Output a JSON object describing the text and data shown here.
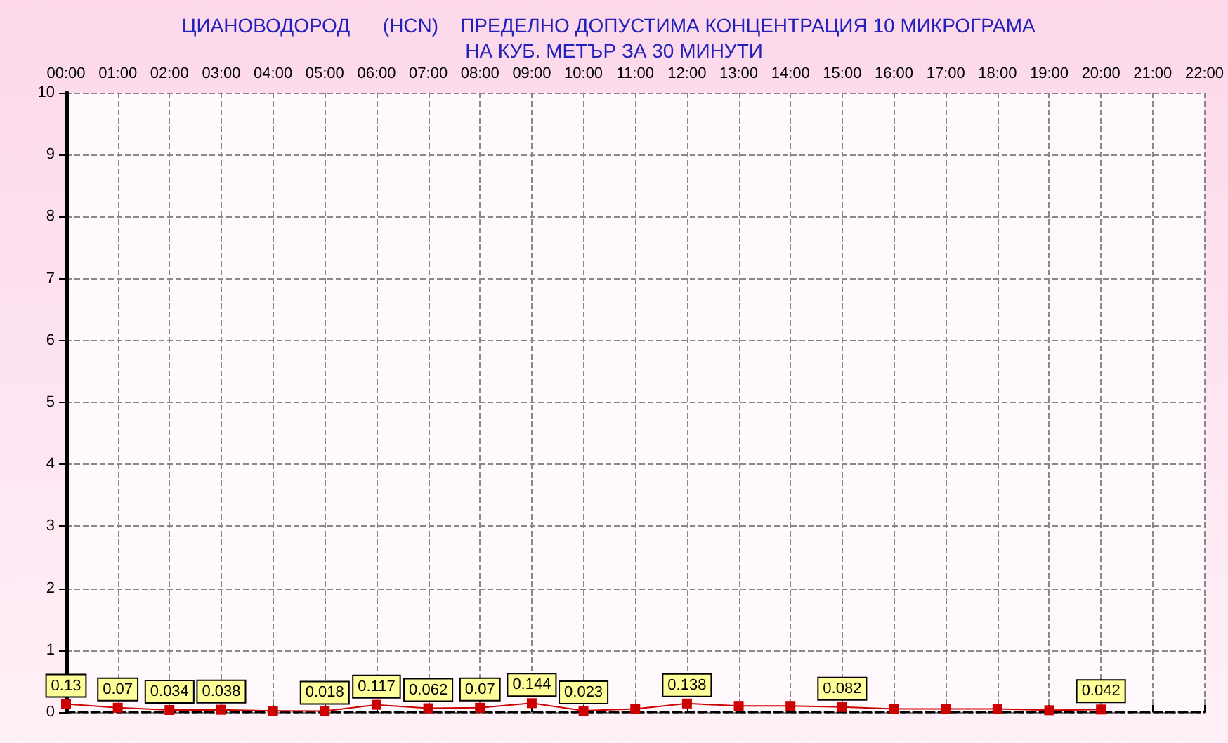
{
  "chart_data": {
    "type": "line",
    "title": "ЦИАНОВОДОРОД      (HCN)    ПРЕДЕЛНО ДОПУСТИМА КОНЦЕНТРАЦИЯ 10 МИКРОГРАМА  НА КУБ. МЕТЪР ЗА 30 МИНУТИ",
    "categories": [
      "00:00",
      "01:00",
      "02:00",
      "03:00",
      "04:00",
      "05:00",
      "06:00",
      "07:00",
      "08:00",
      "09:00",
      "10:00",
      "11:00",
      "12:00",
      "13:00",
      "14:00",
      "15:00",
      "16:00",
      "17:00",
      "18:00",
      "19:00",
      "20:00",
      "21:00",
      "22:00"
    ],
    "series": [
      {
        "color": "#cc0000",
        "values": [
          0.13,
          0.07,
          0.034,
          0.038,
          0.02,
          0.018,
          0.117,
          0.062,
          0.07,
          0.144,
          0.023,
          0.05,
          0.138,
          0.1,
          0.1,
          0.082,
          0.05,
          0.05,
          0.05,
          0.03,
          0.042,
          null,
          null
        ],
        "value_labels": [
          "0.13",
          "0.07",
          "0.034",
          "0.038",
          null,
          "0.018",
          "0.117",
          "0.062",
          "0.07",
          "0.144",
          "0.023",
          null,
          "0.138",
          null,
          null,
          "0.082",
          null,
          null,
          null,
          null,
          "0.042",
          null,
          null
        ]
      }
    ],
    "ylim": [
      0,
      10
    ],
    "yticks": [
      0,
      1,
      2,
      3,
      4,
      5,
      6,
      7,
      8,
      9,
      10
    ],
    "grid": true,
    "marker": "square",
    "line_style": "solid"
  }
}
